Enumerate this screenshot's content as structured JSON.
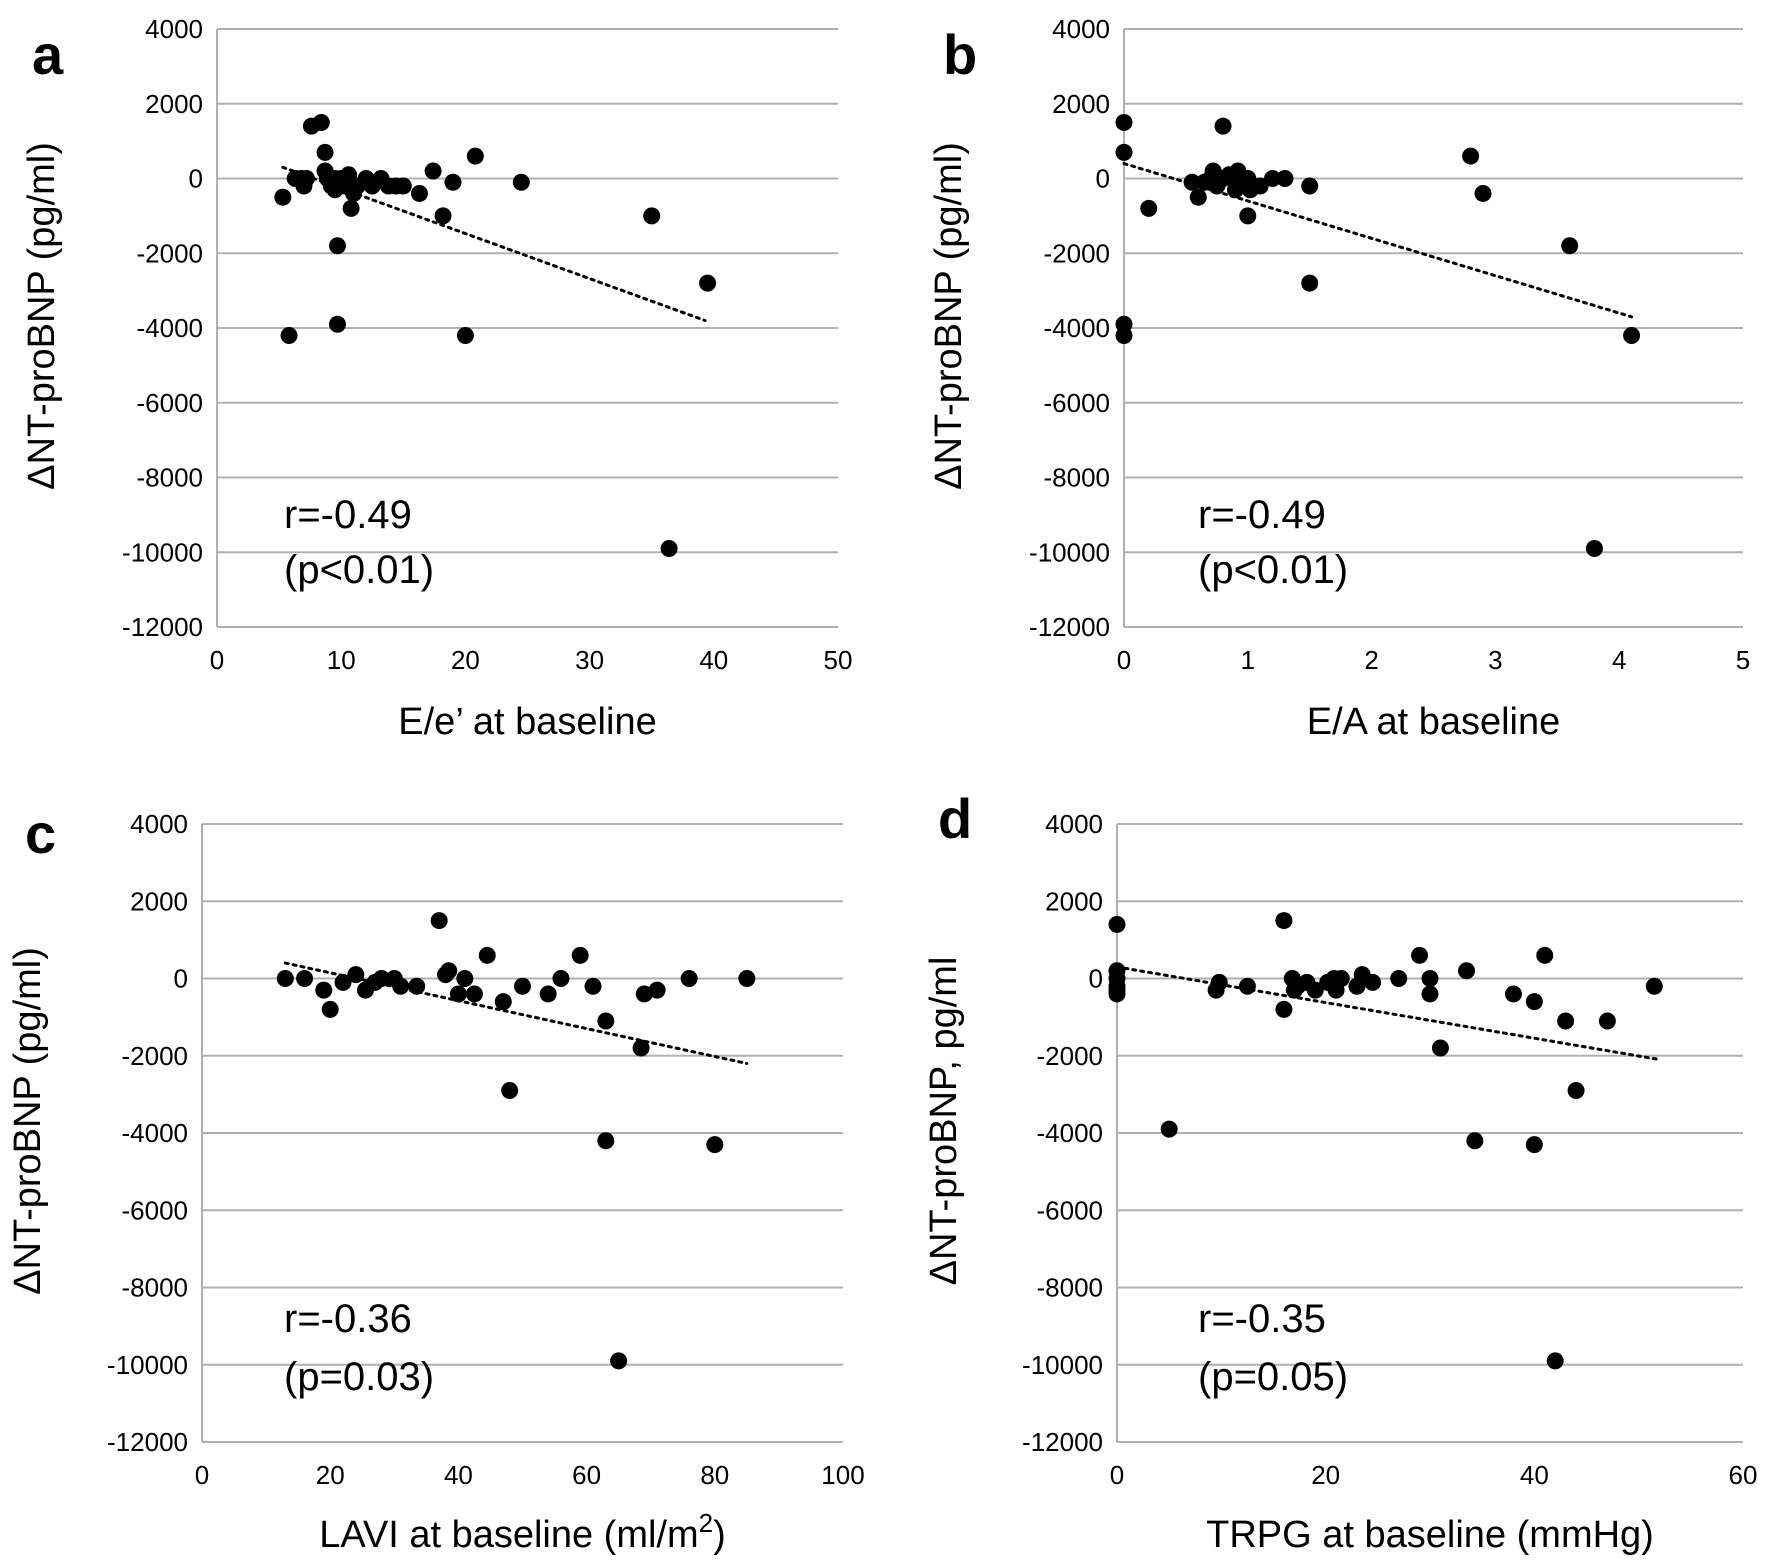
{
  "chart_data": [
    {
      "type": "scatter",
      "panel_label": "a",
      "xlabel": "E/e’ at baseline",
      "ylabel": "ΔNT-proBNP (pg/ml)",
      "xlim": [
        0,
        50
      ],
      "ylim": [
        -12000,
        4000
      ],
      "xticks": [
        "0",
        "10",
        "20",
        "30",
        "40",
        "50"
      ],
      "yticks": [
        "4000",
        "2000",
        "0",
        "-2000",
        "-4000",
        "-6000",
        "-8000",
        "-10000",
        "-12000"
      ],
      "annotation": [
        "r=-0.49",
        "(p<0.01)"
      ],
      "grid": "horizontal",
      "trendline": [
        [
          5.3,
          300
        ],
        [
          39.3,
          -3800
        ]
      ],
      "points": [
        [
          5.3,
          -500
        ],
        [
          5.8,
          -4200
        ],
        [
          6.3,
          0
        ],
        [
          6.8,
          0
        ],
        [
          7.0,
          -200
        ],
        [
          7.2,
          0
        ],
        [
          7.6,
          1400
        ],
        [
          8.4,
          1500
        ],
        [
          8.7,
          700
        ],
        [
          8.7,
          200
        ],
        [
          8.9,
          0
        ],
        [
          9.2,
          -200
        ],
        [
          9.5,
          0
        ],
        [
          9.5,
          -300
        ],
        [
          9.7,
          -1800
        ],
        [
          9.7,
          -3900
        ],
        [
          10.0,
          0
        ],
        [
          10.3,
          -200
        ],
        [
          10.6,
          100
        ],
        [
          10.6,
          -200
        ],
        [
          10.8,
          -800
        ],
        [
          11.0,
          -400
        ],
        [
          11.3,
          -200
        ],
        [
          12.0,
          0
        ],
        [
          12.5,
          -200
        ],
        [
          13.2,
          0
        ],
        [
          13.8,
          -200
        ],
        [
          14.4,
          -200
        ],
        [
          15.0,
          -200
        ],
        [
          16.3,
          -400
        ],
        [
          17.4,
          200
        ],
        [
          18.2,
          -1000
        ],
        [
          19.0,
          -100
        ],
        [
          20.0,
          -4200
        ],
        [
          20.8,
          600
        ],
        [
          24.5,
          -100
        ],
        [
          35.0,
          -1000
        ],
        [
          36.4,
          -9900
        ],
        [
          39.5,
          -2800
        ]
      ]
    },
    {
      "type": "scatter",
      "panel_label": "b",
      "xlabel": "E/A at baseline",
      "ylabel": "ΔNT-proBNP (pg/ml)",
      "xlim": [
        0,
        5
      ],
      "ylim": [
        -12000,
        4000
      ],
      "xticks": [
        "0",
        "1",
        "2",
        "3",
        "4",
        "5"
      ],
      "yticks": [
        "4000",
        "2000",
        "0",
        "-2000",
        "-4000",
        "-6000",
        "-8000",
        "-10000",
        "-12000"
      ],
      "annotation": [
        "r=-0.49",
        "(p<0.01)"
      ],
      "grid": "horizontal",
      "trendline": [
        [
          0.0,
          400
        ],
        [
          4.1,
          -3700
        ]
      ],
      "points": [
        [
          0.0,
          1500
        ],
        [
          0.0,
          700
        ],
        [
          0.0,
          -3900
        ],
        [
          0.0,
          -4200
        ],
        [
          0.2,
          -800
        ],
        [
          0.55,
          -100
        ],
        [
          0.6,
          -500
        ],
        [
          0.65,
          -100
        ],
        [
          0.7,
          0
        ],
        [
          0.72,
          200
        ],
        [
          0.75,
          -200
        ],
        [
          0.8,
          0
        ],
        [
          0.8,
          1400
        ],
        [
          0.85,
          100
        ],
        [
          0.9,
          -300
        ],
        [
          0.92,
          200
        ],
        [
          0.95,
          -100
        ],
        [
          1.0,
          0
        ],
        [
          1.0,
          -200
        ],
        [
          1.0,
          -1000
        ],
        [
          1.02,
          -300
        ],
        [
          1.1,
          -200
        ],
        [
          1.2,
          0
        ],
        [
          1.3,
          0
        ],
        [
          1.5,
          -200
        ],
        [
          1.5,
          -2800
        ],
        [
          2.8,
          600
        ],
        [
          2.9,
          -400
        ],
        [
          3.6,
          -1800
        ],
        [
          3.8,
          -9900
        ],
        [
          4.1,
          -4200
        ]
      ]
    },
    {
      "type": "scatter",
      "panel_label": "c",
      "xlabel": "LAVI at baseline (ml/m",
      "xlabel_sup": "2",
      "xlabel_end": ")",
      "ylabel": "ΔNT-proBNP (pg/ml)",
      "xlim": [
        0,
        100
      ],
      "ylim": [
        -12000,
        4000
      ],
      "xticks": [
        "0",
        "20",
        "40",
        "60",
        "80",
        "100"
      ],
      "yticks": [
        "4000",
        "2000",
        "0",
        "-2000",
        "-4000",
        "-6000",
        "-8000",
        "-10000",
        "-12000"
      ],
      "annotation": [
        "r=-0.36",
        "(p=0.03)"
      ],
      "grid": "horizontal",
      "trendline": [
        [
          13,
          400
        ],
        [
          85,
          -2200
        ]
      ],
      "points": [
        [
          13,
          0
        ],
        [
          16,
          0
        ],
        [
          19,
          -300
        ],
        [
          20,
          -800
        ],
        [
          22,
          -100
        ],
        [
          24,
          100
        ],
        [
          25.5,
          -300
        ],
        [
          27,
          -100
        ],
        [
          28,
          0
        ],
        [
          30,
          0
        ],
        [
          31,
          -200
        ],
        [
          33.5,
          -200
        ],
        [
          37,
          1500
        ],
        [
          38,
          100
        ],
        [
          38.5,
          200
        ],
        [
          40,
          -400
        ],
        [
          41,
          0
        ],
        [
          42.5,
          -400
        ],
        [
          44.5,
          600
        ],
        [
          47,
          -600
        ],
        [
          48,
          -2900
        ],
        [
          50,
          -200
        ],
        [
          54,
          -400
        ],
        [
          56,
          0
        ],
        [
          59,
          600
        ],
        [
          61,
          -200
        ],
        [
          63,
          -1100
        ],
        [
          63,
          -4200
        ],
        [
          65,
          -9900
        ],
        [
          68.5,
          -1800
        ],
        [
          69,
          -400
        ],
        [
          71,
          -300
        ],
        [
          76,
          0
        ],
        [
          80,
          -4300
        ],
        [
          85,
          0
        ]
      ]
    },
    {
      "type": "scatter",
      "panel_label": "d",
      "xlabel": "TRPG at baseline (mmHg)",
      "ylabel": "ΔNT-proBNP, pg/ml",
      "xlim": [
        0,
        60
      ],
      "ylim": [
        -12000,
        4000
      ],
      "xticks": [
        "0",
        "20",
        "40",
        "60"
      ],
      "yticks": [
        "4000",
        "2000",
        "0",
        "-2000",
        "-4000",
        "-6000",
        "-8000",
        "-10000",
        "-12000"
      ],
      "annotation": [
        "r=-0.35",
        "(p=0.05)"
      ],
      "grid": "horizontal",
      "trendline": [
        [
          0,
          300
        ],
        [
          52,
          -2100
        ]
      ],
      "points": [
        [
          0,
          1400
        ],
        [
          0,
          200
        ],
        [
          0,
          0
        ],
        [
          0,
          -200
        ],
        [
          0,
          -300
        ],
        [
          0,
          -400
        ],
        [
          5,
          -3900
        ],
        [
          9.5,
          -300
        ],
        [
          9.8,
          -100
        ],
        [
          12.5,
          -200
        ],
        [
          16,
          1500
        ],
        [
          16,
          -800
        ],
        [
          16.8,
          0
        ],
        [
          17,
          -300
        ],
        [
          17.3,
          -200
        ],
        [
          18.2,
          -100
        ],
        [
          19,
          -300
        ],
        [
          20.2,
          -100
        ],
        [
          20.8,
          0
        ],
        [
          21,
          -300
        ],
        [
          21.5,
          0
        ],
        [
          23,
          -200
        ],
        [
          23.5,
          100
        ],
        [
          24.5,
          -100
        ],
        [
          27,
          0
        ],
        [
          29,
          600
        ],
        [
          30,
          0
        ],
        [
          30,
          -400
        ],
        [
          31,
          -1800
        ],
        [
          33.5,
          200
        ],
        [
          34.3,
          -4200
        ],
        [
          38,
          -400
        ],
        [
          40,
          -600
        ],
        [
          40,
          -4300
        ],
        [
          41,
          600
        ],
        [
          42,
          -9900
        ],
        [
          43,
          -1100
        ],
        [
          44,
          -2900
        ],
        [
          47,
          -1100
        ],
        [
          51.5,
          -200
        ]
      ]
    }
  ]
}
